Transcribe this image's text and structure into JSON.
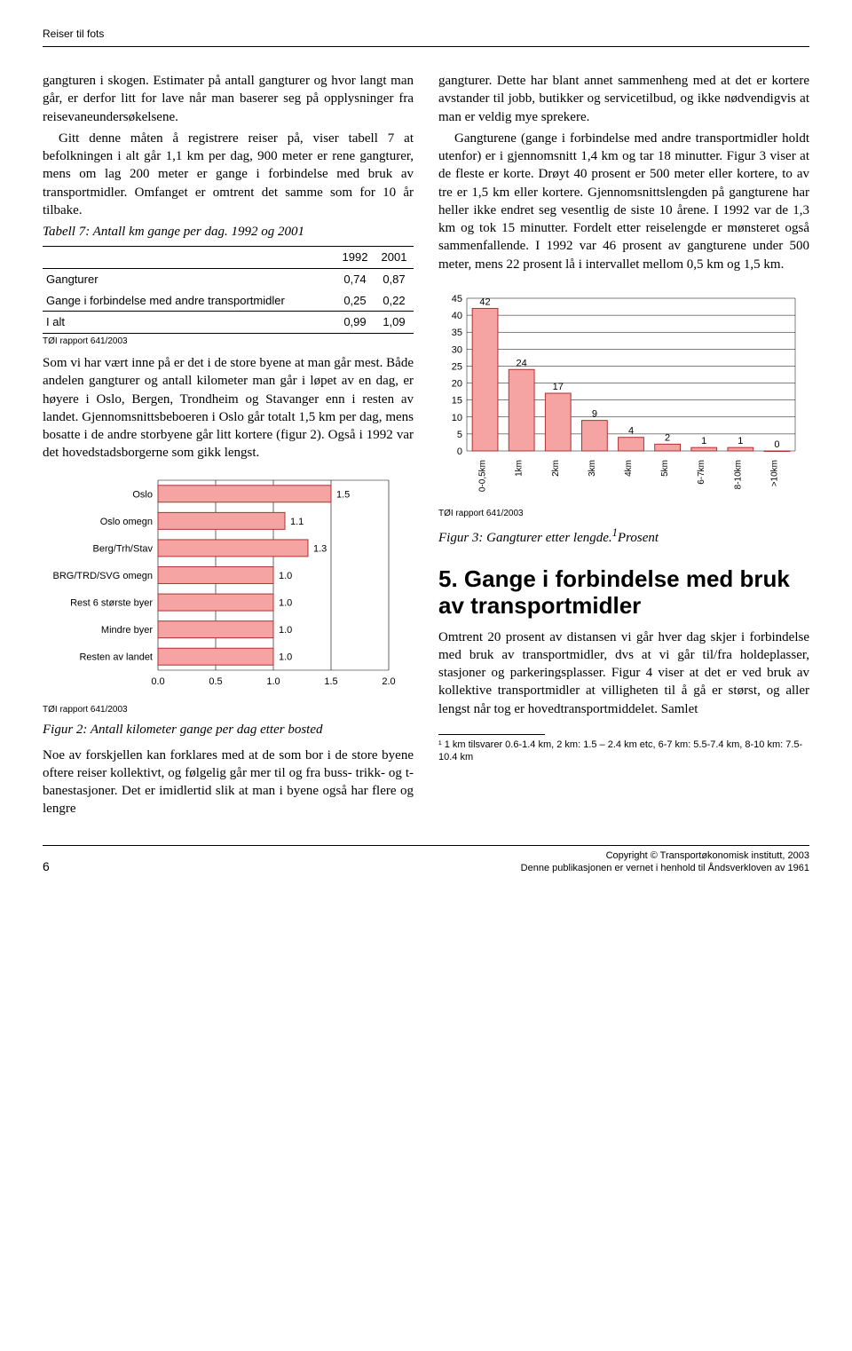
{
  "header": {
    "running_title": "Reiser til fots"
  },
  "left": {
    "p1": "gangturen i skogen. Estimater på antall gangturer og hvor langt man går, er derfor litt for lave når man baserer seg på opplysninger fra reisevaneundersøkelsene.",
    "p2": "Gitt denne måten å registrere reiser på, viser tabell 7 at befolkningen i alt går 1,1 km per dag, 900 meter er rene gangturer, mens om lag 200 meter er gange i forbindelse med bruk av transportmidler. Omfanget er omtrent det samme som for 10 år tilbake.",
    "table7_caption": "Tabell 7: Antall km gange per dag. 1992 og 2001",
    "table7": {
      "columns": [
        "",
        "1992",
        "2001"
      ],
      "rows": [
        [
          "Gangturer",
          "0,74",
          "0,87"
        ],
        [
          "Gange i forbindelse med andre transportmidler",
          "0,25",
          "0,22"
        ],
        [
          "I alt",
          "0,99",
          "1,09"
        ]
      ],
      "source": "TØI rapport 641/2003"
    },
    "p3": "Som vi har vært inne på er det i de store byene at man går mest. Både andelen gangturer og antall kilometer man går i løpet av en dag, er høyere i Oslo, Bergen, Trondheim og Stavanger enn i resten av landet. Gjennomsnittsbeboeren i Oslo går totalt 1,5 km per dag, mens bosatte i de andre storbyene går litt kortere (figur 2). Også i 1992 var det hovedstadsborgerne som gikk lengst.",
    "fig2": {
      "type": "bar-horizontal",
      "categories": [
        "Oslo",
        "Oslo omegn",
        "Berg/Trh/Stav",
        "BRG/TRD/SVG omegn",
        "Rest 6 største byer",
        "Mindre byer",
        "Resten av landet"
      ],
      "values": [
        1.5,
        1.1,
        1.3,
        1.0,
        1.0,
        1.0,
        1.0
      ],
      "xlim": [
        0.0,
        2.0
      ],
      "xtick_step": 0.5,
      "bar_fill": "#f5a3a3",
      "bar_stroke": "#b03030",
      "label_fontsize": 11,
      "axis_fontsize": 11,
      "source": "TØI rapport 641/2003",
      "caption": "Figur 2: Antall kilometer gange per dag etter bosted"
    },
    "p4": "Noe av forskjellen kan forklares med at de som bor i de store byene oftere reiser kollektivt, og følgelig går mer til og fra buss- trikk- og t-banestasjoner. Det er imidlertid slik at man i byene også har flere og lengre"
  },
  "right": {
    "p1": "gangturer. Dette har blant annet sammenheng med at det er kortere avstander til jobb, butikker og servicetilbud, og ikke nødvendigvis at man er veldig mye sprekere.",
    "p2": "Gangturene (gange i forbindelse med andre transportmidler holdt utenfor) er i gjennomsnitt 1,4 km og tar 18 minutter. Figur 3 viser at de fleste er korte. Drøyt 40 prosent er 500 meter eller kortere, to av tre er 1,5 km eller kortere. Gjennomsnittslengden på gangturene har heller ikke endret seg vesentlig de siste 10 årene. I 1992 var de 1,3 km og tok 15 minutter. Fordelt etter reiselengde er mønsteret også sammenfallende. I 1992 var 46 prosent av gangturene under 500 meter, mens 22 prosent lå i intervallet mellom 0,5 km og 1,5 km.",
    "fig3": {
      "type": "bar",
      "categories": [
        "0-0,5km",
        "1km",
        "2km",
        "3km",
        "4km",
        "5km",
        "6-7km",
        "8-10km",
        ">10km"
      ],
      "values": [
        42,
        24,
        17,
        9,
        4,
        2,
        1,
        1,
        0
      ],
      "ylim": [
        0,
        45
      ],
      "ytick_step": 5,
      "bar_fill": "#f5a3a3",
      "bar_stroke": "#b03030",
      "label_fontsize": 10,
      "axis_fontsize": 11,
      "source": "TØI rapport 641/2003",
      "caption_prefix": "Figur 3: Gangturer etter lengde.",
      "caption_sup": "1",
      "caption_suffix": "Prosent"
    },
    "section5_title": "5. Gange i forbindelse med bruk av transportmidler",
    "p3": "Omtrent 20 prosent av distansen vi går hver dag skjer i forbindelse med bruk av transportmidler, dvs at vi går til/fra holdeplasser, stasjoner og parkeringsplasser. Figur 4 viser at det er ved bruk av kollektive transportmidler at villigheten til å gå er størst, og aller lengst når tog er hovedtransportmiddelet. Samlet",
    "footnote": "¹ 1 km tilsvarer 0.6-1.4 km, 2 km: 1.5 – 2.4 km etc, 6-7 km: 5.5-7.4 km, 8-10 km: 7.5-10.4 km"
  },
  "footer": {
    "page_number": "6",
    "copyright_line1": "Copyright © Transportøkonomisk institutt, 2003",
    "copyright_line2": "Denne publikasjonen er vernet i henhold til Åndsverkloven av 1961"
  }
}
